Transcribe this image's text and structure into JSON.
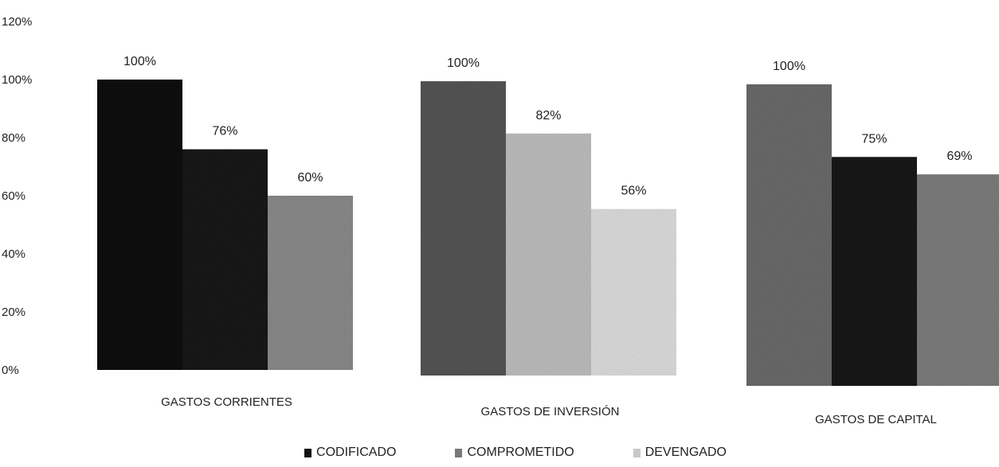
{
  "chart_data": {
    "type": "bar",
    "categories": [
      "GASTOS CORRIENTES",
      "GASTOS DE INVERSIÓN",
      "GASTOS DE CAPITAL"
    ],
    "series": [
      {
        "name": "CODIFICADO",
        "values": [
          100,
          100,
          100
        ],
        "labels": [
          "100%",
          "100%",
          "100%"
        ],
        "color": "#111111"
      },
      {
        "name": "COMPROMETIDO",
        "values": [
          76,
          82,
          75
        ],
        "labels": [
          "76%",
          "82%",
          "75%"
        ],
        "color": "#222222"
      },
      {
        "name": "DEVENGADO",
        "values": [
          60,
          56,
          69
        ],
        "labels": [
          "60%",
          "56%",
          "69%"
        ],
        "color": "#8a8a8a"
      }
    ],
    "bar_colors": [
      [
        "#0d0d0d",
        "#1a1a1a",
        "#8a8a8a"
      ],
      [
        "#555555",
        "#bdbdbd",
        "#dcdcdc"
      ],
      [
        "#6a6a6a",
        "#161616",
        "#7c7c7c"
      ]
    ],
    "yticks": [
      "0%",
      "20%",
      "40%",
      "60%",
      "80%",
      "100%",
      "120%"
    ],
    "ylim": [
      0,
      120
    ],
    "grid": false,
    "legend_position": "bottom"
  }
}
